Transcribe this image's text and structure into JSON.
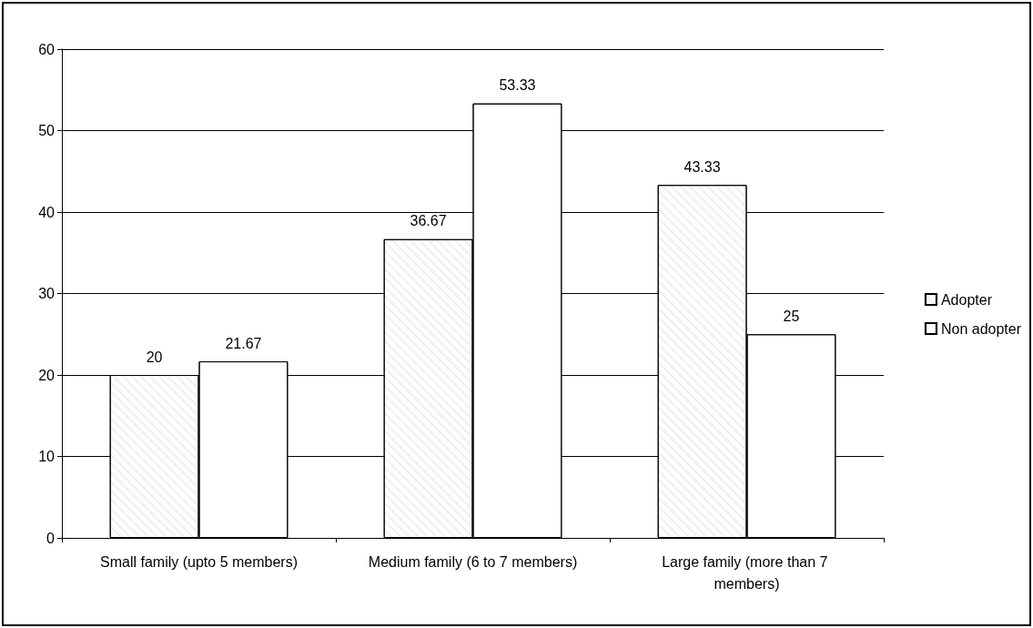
{
  "chart_data": {
    "type": "bar",
    "categories": [
      "Small family (upto 5 members)",
      "Medium family (6 to 7 members)",
      "Large family (more than 7 members)"
    ],
    "series": [
      {
        "name": "Adopter",
        "color": "#ffffff",
        "values": [
          20,
          36.67,
          43.33
        ]
      },
      {
        "name": "Non adopter",
        "color": "#ffffff",
        "values": [
          21.67,
          53.33,
          25
        ]
      }
    ],
    "ylim": [
      0,
      60
    ],
    "yticks": [
      0,
      10,
      20,
      30,
      40,
      50,
      60
    ],
    "grid": "y",
    "legend": "right",
    "data_labels": true
  }
}
